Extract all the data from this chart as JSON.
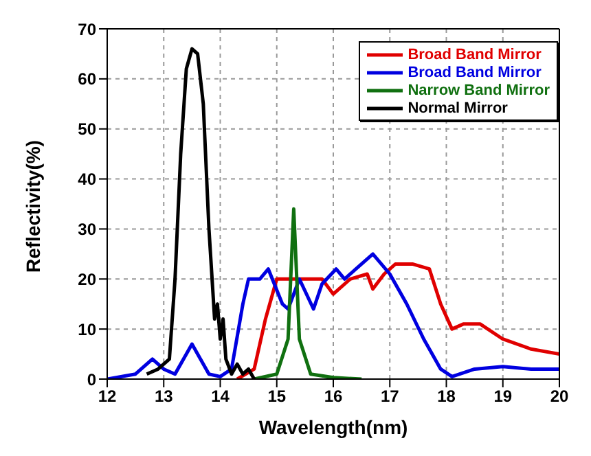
{
  "chart_data": {
    "type": "line",
    "xlabel": "Wavelength(nm)",
    "ylabel": "Reflectivity(%)",
    "xlim": [
      12,
      20
    ],
    "xticks": [
      12,
      13,
      14,
      15,
      16,
      17,
      18,
      19,
      20
    ],
    "ylim": [
      0,
      70
    ],
    "yticks": [
      0,
      10,
      20,
      30,
      40,
      50,
      60,
      70
    ],
    "grid": true,
    "legend": "top right",
    "marker": "none",
    "line_style": "solid",
    "series": [
      {
        "name": "Broad Band Mirror",
        "color": "#e00000",
        "x": [
          14.3,
          14.6,
          14.8,
          15.0,
          15.5,
          15.8,
          16.0,
          16.3,
          16.6,
          16.7,
          16.9,
          17.1,
          17.4,
          17.7,
          17.9,
          18.1,
          18.3,
          18.6,
          19.0,
          19.5,
          20.0
        ],
        "values": [
          0,
          2,
          12,
          20,
          20,
          20,
          17,
          20,
          21,
          18,
          21,
          23,
          23,
          22,
          15,
          10,
          11,
          11,
          8,
          6,
          5
        ]
      },
      {
        "name": "Broad Band Mirror",
        "color": "#0000e0",
        "x": [
          12.0,
          12.5,
          12.8,
          13.0,
          13.2,
          13.5,
          13.8,
          14.0,
          14.2,
          14.4,
          14.5,
          14.7,
          14.85,
          15.1,
          15.2,
          15.4,
          15.65,
          15.8,
          16.05,
          16.2,
          16.4,
          16.7,
          17.0,
          17.3,
          17.6,
          17.9,
          18.1,
          18.5,
          19.0,
          19.5,
          20.0
        ],
        "values": [
          0,
          1,
          4,
          2,
          1,
          7,
          1,
          0.5,
          2,
          15,
          20,
          20,
          22,
          15,
          14,
          20,
          14,
          19,
          22,
          20,
          22,
          25,
          21,
          15,
          8,
          2,
          0.5,
          2,
          2.5,
          2,
          2
        ]
      },
      {
        "name": "Narrow Band Mirror",
        "color": "#107010",
        "x": [
          14.6,
          15.0,
          15.2,
          15.3,
          15.4,
          15.6,
          16.0,
          16.5
        ],
        "values": [
          0,
          1,
          8,
          34,
          8,
          1,
          0.3,
          0
        ]
      },
      {
        "name": "Normal Mirror",
        "color": "#000000",
        "x": [
          12.7,
          12.9,
          13.1,
          13.2,
          13.3,
          13.4,
          13.5,
          13.6,
          13.7,
          13.8,
          13.9,
          13.95,
          14.0,
          14.05,
          14.1,
          14.2,
          14.3,
          14.4,
          14.5,
          14.6
        ],
        "values": [
          1,
          2,
          4,
          20,
          45,
          62,
          66,
          65,
          55,
          30,
          12,
          15,
          8,
          12,
          4,
          1,
          3,
          1,
          2,
          0
        ]
      }
    ]
  }
}
